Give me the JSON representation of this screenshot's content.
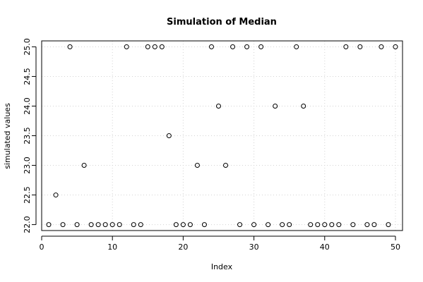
{
  "chart_data": {
    "type": "scatter",
    "title": "Simulation of Median",
    "xlabel": "Index",
    "ylabel": "simulated values",
    "xlim": [
      0,
      51
    ],
    "ylim": [
      21.9,
      25.1
    ],
    "x_ticks": [
      0,
      10,
      20,
      30,
      40,
      50
    ],
    "x_tick_labels": [
      "0",
      "10",
      "20",
      "30",
      "40",
      "50"
    ],
    "y_ticks": [
      22.0,
      22.5,
      23.0,
      23.5,
      24.0,
      24.5,
      25.0
    ],
    "y_tick_labels": [
      "22.0",
      "22.5",
      "23.0",
      "23.5",
      "24.0",
      "24.5",
      "25.0"
    ],
    "grid": true,
    "marker": "open-circle",
    "series": [
      {
        "x": [
          1,
          2,
          3,
          4,
          5,
          6,
          7,
          8,
          9,
          10,
          11,
          12,
          13,
          14,
          15,
          16,
          17,
          18,
          19,
          20,
          21,
          22,
          23,
          24,
          25,
          26,
          27,
          28,
          29,
          30,
          31,
          32,
          33,
          34,
          35,
          36,
          37,
          38,
          39,
          40,
          41,
          42,
          43,
          44,
          45,
          46,
          47,
          48,
          49,
          50
        ],
        "y": [
          22,
          22.5,
          22,
          25,
          22,
          23,
          22,
          22,
          22,
          22,
          22,
          25,
          22,
          22,
          25,
          25,
          25,
          23.5,
          22,
          22,
          22,
          23,
          22,
          25,
          24,
          23,
          25,
          22,
          25,
          22,
          25,
          22,
          24,
          22,
          22,
          25,
          24,
          22,
          22,
          22,
          22,
          22,
          25,
          22,
          25,
          22,
          22,
          25,
          22,
          25
        ]
      }
    ]
  }
}
